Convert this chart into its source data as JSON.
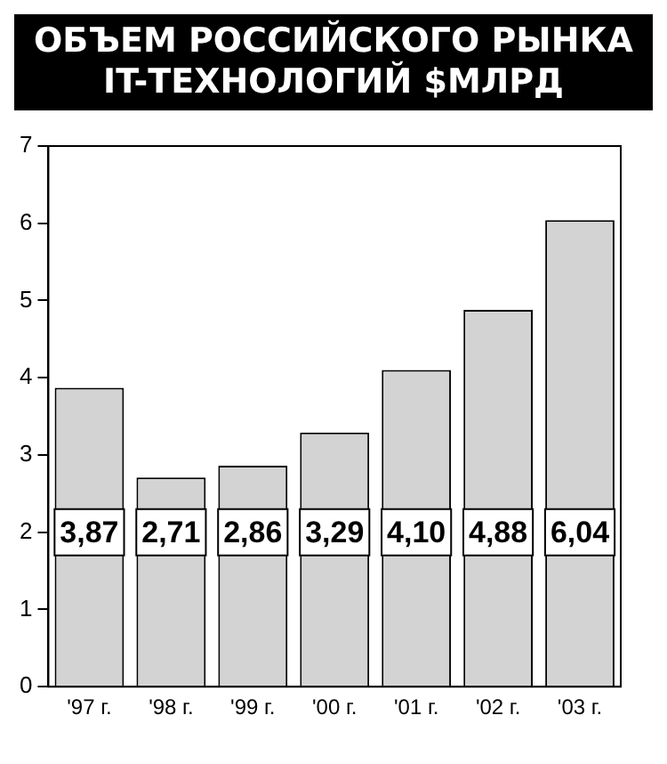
{
  "chart_data": {
    "type": "bar",
    "title": "ОБЪЕМ РОССИЙСКОГО РЫНКА IT-ТЕХНОЛОГИЙ $МЛРД",
    "categories": [
      "'97 г.",
      "'98 г.",
      "'99 г.",
      "'00 г.",
      "'01 г.",
      "'02 г.",
      "'03 г."
    ],
    "values": [
      3.87,
      2.71,
      2.86,
      3.29,
      4.1,
      4.88,
      6.04
    ],
    "value_labels": [
      "3,87",
      "2,71",
      "2,86",
      "3,29",
      "4,10",
      "4,88",
      "6,04"
    ],
    "color": "#d3d3d3",
    "ylim": [
      0,
      7
    ],
    "yticks": [
      0,
      1,
      2,
      3,
      4,
      5,
      6,
      7
    ],
    "grid": false,
    "legend": false
  }
}
